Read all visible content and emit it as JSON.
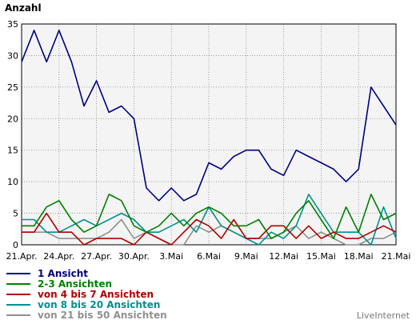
{
  "chart_data": {
    "type": "line",
    "ylabel": "Anzahl",
    "ylim": [
      0,
      35
    ],
    "yticks": [
      0,
      5,
      10,
      15,
      20,
      25,
      30,
      35
    ],
    "grid": true,
    "legend_position": "bottom-left",
    "x_tick_labels": [
      "21.Apr.",
      "24.Apr.",
      "27.Apr.",
      "30.Apr.",
      "3.Mai",
      "6.Mai",
      "9.Mai",
      "12.Mai",
      "15.Mai",
      "18.Mai",
      "21.Mai"
    ],
    "series": [
      {
        "name": "1 Ansicht",
        "color": "#000080",
        "values": [
          29,
          34,
          29,
          34,
          29,
          22,
          26,
          21,
          22,
          20,
          9,
          7,
          9,
          7,
          8,
          13,
          12,
          14,
          15,
          15,
          12,
          11,
          15,
          14,
          13,
          12,
          10,
          12,
          25,
          22,
          19
        ]
      },
      {
        "name": "2-3 Ansichten",
        "color": "#008000",
        "values": [
          3,
          3,
          6,
          7,
          4,
          2,
          3,
          8,
          7,
          3,
          2,
          3,
          5,
          3,
          5,
          6,
          5,
          3,
          3,
          4,
          1,
          2,
          5,
          7,
          4,
          1,
          6,
          2,
          8,
          4,
          5
        ]
      },
      {
        "name": "von 4 bis 7 Ansichten",
        "color": "#b00000",
        "values": [
          2,
          2,
          5,
          2,
          2,
          0,
          1,
          1,
          1,
          0,
          2,
          1,
          0,
          2,
          4,
          3,
          1,
          4,
          1,
          1,
          3,
          3,
          1,
          3,
          1,
          2,
          1,
          1,
          2,
          3,
          2
        ]
      },
      {
        "name": "von 8 bis 20 Ansichten",
        "color": "#009090",
        "values": [
          4,
          4,
          2,
          2,
          3,
          4,
          3,
          4,
          5,
          4,
          2,
          2,
          3,
          4,
          2,
          6,
          3,
          2,
          1,
          0,
          2,
          1,
          3,
          8,
          5,
          2,
          2,
          2,
          0,
          6,
          1
        ]
      },
      {
        "name": "von 21 bis 50 Ansichten",
        "color": "#909090",
        "values": [
          2,
          2,
          2,
          1,
          1,
          1,
          1,
          2,
          4,
          1,
          2,
          1,
          0,
          0,
          3,
          2,
          3,
          2,
          1,
          1,
          1,
          2,
          3,
          1,
          2,
          1,
          0,
          0,
          1,
          1,
          2
        ]
      }
    ]
  },
  "branding": "LiveInternet"
}
